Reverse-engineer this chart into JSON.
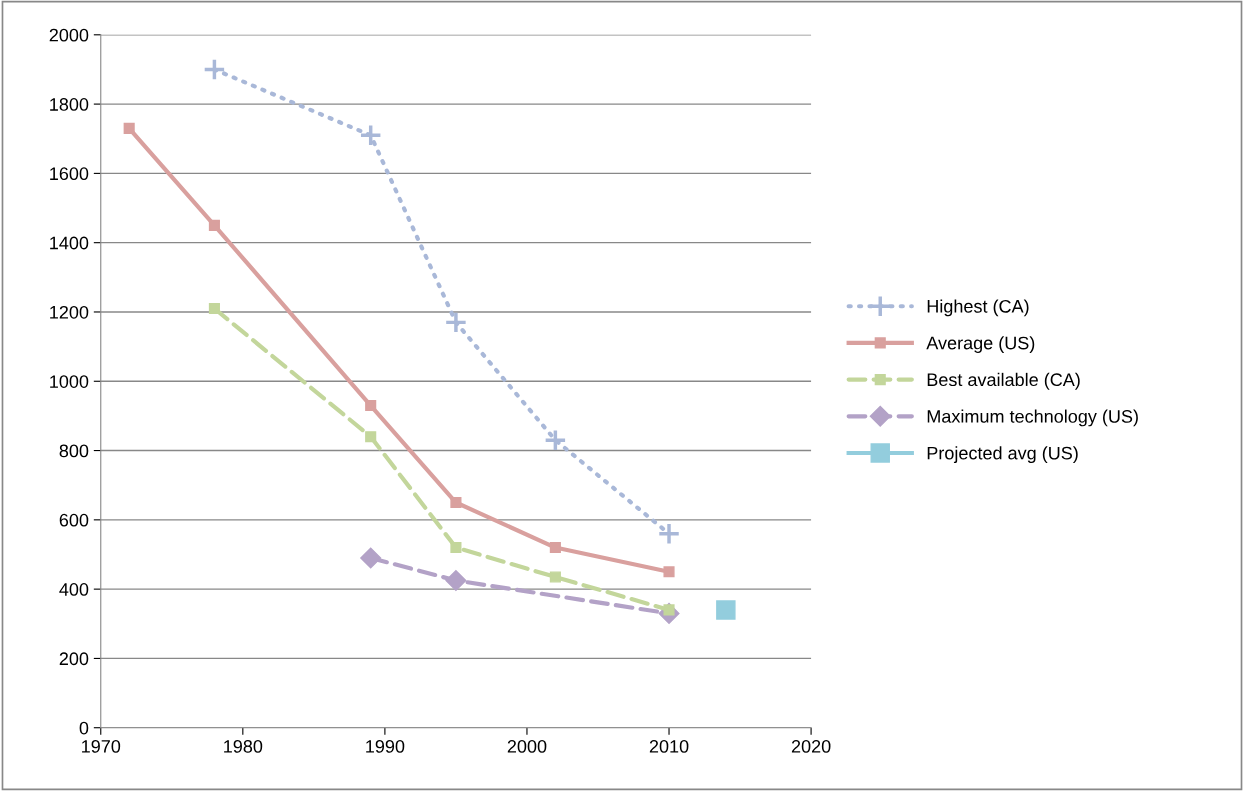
{
  "chart_data": {
    "type": "line",
    "series": [
      {
        "name": "Highest (CA)",
        "color": "#a9b8d8",
        "marker": "cross",
        "line_style": "dotted",
        "x": [
          1978,
          1989,
          1995,
          2002,
          2010
        ],
        "values": [
          1900,
          1710,
          1170,
          830,
          560
        ]
      },
      {
        "name": "Average (US)",
        "color": "#d9a09e",
        "marker": "square",
        "line_style": "solid",
        "x": [
          1972,
          1978,
          1989,
          1995,
          2002,
          2010
        ],
        "values": [
          1730,
          1450,
          930,
          650,
          520,
          450
        ]
      },
      {
        "name": "Best available (CA)",
        "color": "#c3d69b",
        "marker": "square",
        "line_style": "dashed",
        "x": [
          1978,
          1989,
          1995,
          2002,
          2010
        ],
        "values": [
          1210,
          840,
          520,
          435,
          340
        ]
      },
      {
        "name": "Maximum technology (US)",
        "color": "#b3a2c7",
        "marker": "diamond",
        "line_style": "dashed",
        "x": [
          1989,
          1995,
          2010
        ],
        "values": [
          490,
          425,
          330
        ]
      },
      {
        "name": "Projected avg (US)",
        "color": "#93cddd",
        "marker": "square",
        "line_style": "solid",
        "x": [
          2014
        ],
        "values": [
          340
        ]
      }
    ],
    "xlim": [
      1970,
      2020
    ],
    "xticks": [
      1970,
      1980,
      1990,
      2000,
      2010,
      2020
    ],
    "ylim": [
      0,
      2000
    ],
    "yticks": [
      0,
      200,
      400,
      600,
      800,
      1000,
      1200,
      1400,
      1600,
      1800,
      2000
    ],
    "grid": "y",
    "legend": "right"
  }
}
